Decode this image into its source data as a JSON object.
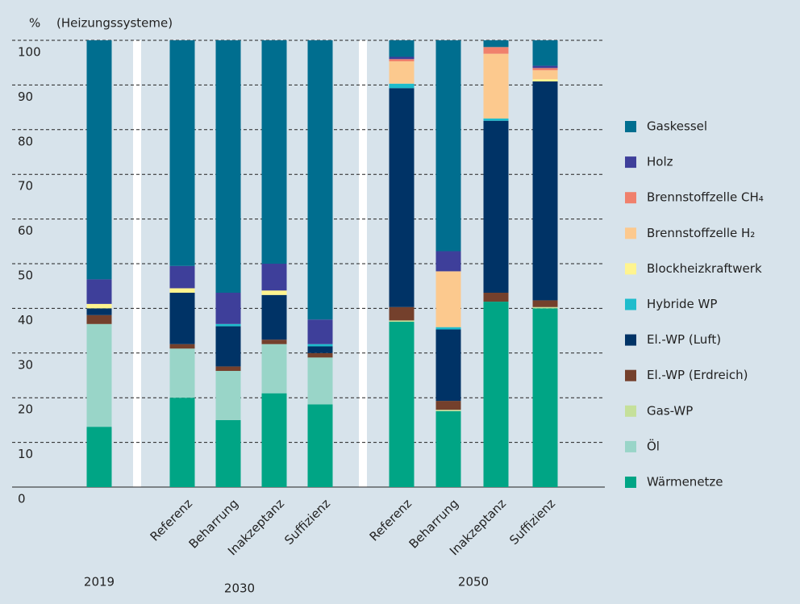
{
  "chart_data": {
    "type": "stacked_bar",
    "y_label": "%",
    "y_sublabel": "(Heizungssysteme)",
    "categories": [
      null,
      "Referenz",
      "Beharrung",
      "Inakzeptanz",
      "Suffizienz",
      "Referenz",
      "Beharrung",
      "Inakzeptanz",
      "Suffizienz"
    ],
    "groups": [
      "2019",
      "2030",
      "2050"
    ],
    "ylim": [
      0,
      100
    ],
    "yticks": [
      0,
      10,
      20,
      30,
      40,
      50,
      60,
      70,
      80,
      90,
      100
    ],
    "grid": true,
    "legend": "right",
    "series": [
      {
        "name": "Wärmenetze",
        "color": "#00a585",
        "values": [
          13.5,
          20,
          15,
          21,
          18.5,
          37,
          17,
          41.5,
          40
        ]
      },
      {
        "name": "Öl",
        "color": "#99d5c8",
        "values": [
          23,
          11,
          11,
          11,
          10.5,
          0,
          0,
          0,
          0
        ]
      },
      {
        "name": "Gas-WP",
        "color": "#c5e09a",
        "values": [
          0,
          0,
          0,
          0,
          0,
          0.3,
          0.3,
          0,
          0.3
        ]
      },
      {
        "name": "El.-WP (Erdreich)",
        "color": "#74402c",
        "values": [
          2,
          1,
          1,
          1,
          1,
          3,
          2,
          2,
          1.5
        ]
      },
      {
        "name": "El.-WP (Luft)",
        "color": "#003366",
        "values": [
          1.5,
          11.5,
          9,
          10,
          1.5,
          49,
          16,
          38.5,
          49
        ]
      },
      {
        "name": "Hybride WP",
        "color": "#1fbccc",
        "values": [
          0,
          0,
          0.5,
          0,
          0.5,
          1,
          0.5,
          0.5,
          0
        ]
      },
      {
        "name": "Blockheizkraftwerk",
        "color": "#fff48f",
        "values": [
          1,
          1,
          0,
          1,
          0,
          0,
          0,
          0,
          0.5
        ]
      },
      {
        "name": "Brennstoffzelle H₂",
        "color": "#fcc98e",
        "values": [
          0,
          0,
          0,
          0,
          0,
          5,
          12.5,
          14.5,
          2
        ]
      },
      {
        "name": "Brennstoffzelle CH₄",
        "color": "#f0806c",
        "values": [
          0,
          0,
          0,
          0,
          0,
          0.5,
          0,
          1.5,
          0.5
        ]
      },
      {
        "name": "Holz",
        "color": "#3e3f9a",
        "values": [
          5.5,
          5,
          7,
          6,
          5.5,
          0.5,
          4.5,
          0,
          0.5
        ]
      },
      {
        "name": "Gaskessel",
        "color": "#006e8f",
        "values": [
          53.5,
          50.5,
          56.5,
          50,
          62.5,
          3.7,
          47.2,
          1.5,
          5.7
        ]
      }
    ]
  }
}
